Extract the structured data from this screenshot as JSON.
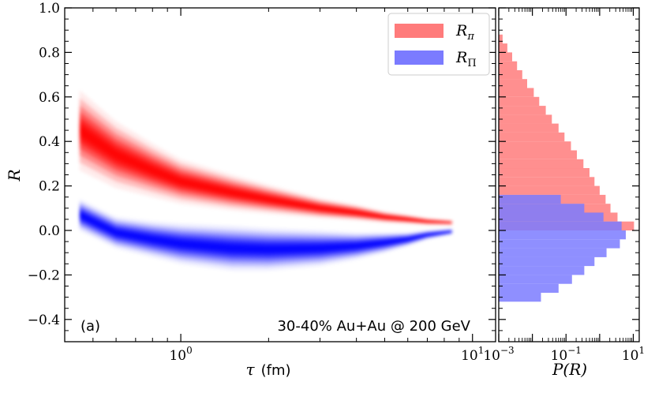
{
  "chart_data": [
    {
      "panel": "(a)",
      "type": "heatmap",
      "annotation": "30-40% Au+Au @ 200 GeV",
      "xlabel_symbol": "τ",
      "xlabel_unit": "(fm)",
      "ylabel": "R",
      "xscale": "log",
      "xlim": [
        0.4,
        12
      ],
      "ylim": [
        -0.5,
        1.0
      ],
      "yticks": [
        "1.0",
        "0.8",
        "0.6",
        "0.4",
        "0.2",
        "0.0",
        "−0.2",
        "−0.4"
      ],
      "ytick_values": [
        1.0,
        0.8,
        0.6,
        0.4,
        0.2,
        0.0,
        -0.2,
        -0.4
      ],
      "xticks": [
        {
          "value": 1,
          "base": "10",
          "exp": "0"
        },
        {
          "value": 10,
          "base": "10",
          "exp": "1"
        }
      ],
      "legend_position": "top-right",
      "series": [
        {
          "name": "R",
          "sub": "π",
          "color": "#ff0000",
          "legend_color": "#ff7b7b",
          "x": [
            0.45,
            0.6,
            0.8,
            1.0,
            1.5,
            2.0,
            3.0,
            4.0,
            5.0,
            6.0,
            7.0,
            8.5
          ],
          "mean": [
            0.45,
            0.34,
            0.27,
            0.22,
            0.17,
            0.14,
            0.1,
            0.08,
            0.06,
            0.05,
            0.04,
            0.035
          ],
          "spread": [
            0.18,
            0.15,
            0.12,
            0.1,
            0.08,
            0.065,
            0.045,
            0.035,
            0.025,
            0.02,
            0.015,
            0.01
          ]
        },
        {
          "name": "R",
          "sub": "Π",
          "color": "#0000ff",
          "legend_color": "#7b7bff",
          "x": [
            0.45,
            0.6,
            0.8,
            1.0,
            1.5,
            2.0,
            3.0,
            4.0,
            5.0,
            6.0,
            7.0,
            8.5
          ],
          "mean": [
            0.07,
            -0.01,
            -0.04,
            -0.06,
            -0.08,
            -0.085,
            -0.08,
            -0.07,
            -0.055,
            -0.04,
            -0.02,
            -0.005
          ],
          "spread": [
            0.07,
            0.07,
            0.08,
            0.09,
            0.1,
            0.095,
            0.08,
            0.06,
            0.045,
            0.03,
            0.02,
            0.012
          ]
        }
      ]
    },
    {
      "type": "bar",
      "orientation": "horizontal",
      "xlabel": "P(R)",
      "xscale": "log",
      "xlim": [
        0.001,
        15
      ],
      "ylim": [
        -0.5,
        1.0
      ],
      "xticks": [
        {
          "value": 0.001,
          "base": "10",
          "exp": "−3"
        },
        {
          "value": 0.1,
          "base": "10",
          "exp": "−1"
        },
        {
          "value": 10,
          "base": "10",
          "exp": "1"
        }
      ],
      "bin_width": 0.04,
      "series": [
        {
          "name": "R",
          "sub": "π",
          "color": "#ff7b7b",
          "bin_start": [
            0.0,
            0.04,
            0.08,
            0.12,
            0.16,
            0.2,
            0.24,
            0.28,
            0.32,
            0.36,
            0.4,
            0.44,
            0.48,
            0.52,
            0.56,
            0.6,
            0.64,
            0.68,
            0.72,
            0.76,
            0.8,
            0.84
          ],
          "density": [
            10.5,
            3.4,
            2.1,
            1.5,
            1.0,
            0.7,
            0.5,
            0.33,
            0.21,
            0.14,
            0.09,
            0.06,
            0.038,
            0.025,
            0.016,
            0.011,
            0.007,
            0.005,
            0.0035,
            0.0025,
            0.0018,
            0.0013
          ]
        },
        {
          "name": "R",
          "sub": "Π",
          "color": "#7b7bff",
          "bin_start": [
            -0.32,
            -0.28,
            -0.24,
            -0.2,
            -0.16,
            -0.12,
            -0.08,
            -0.04,
            0.0,
            0.04,
            0.08,
            0.12
          ],
          "density": [
            0.018,
            0.06,
            0.15,
            0.35,
            0.7,
            1.6,
            4.0,
            6.0,
            4.5,
            1.3,
            0.35,
            0.07
          ]
        }
      ]
    }
  ]
}
